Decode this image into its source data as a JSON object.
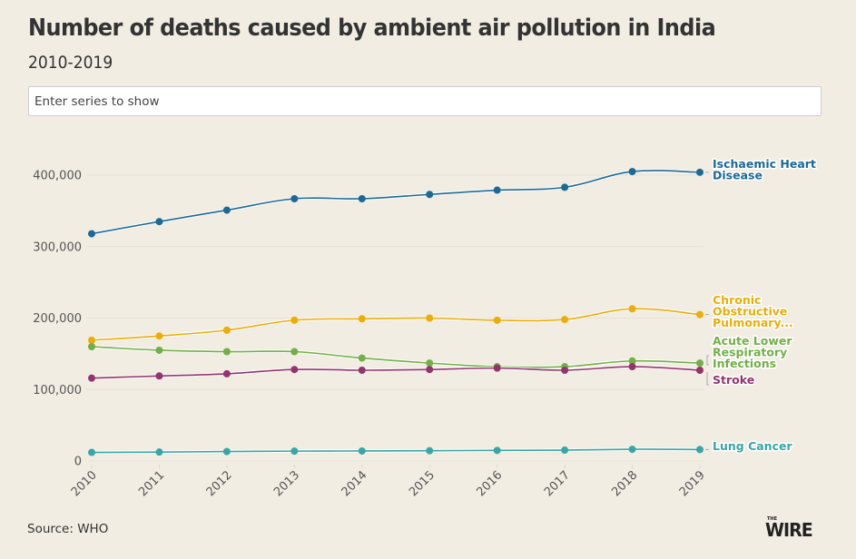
{
  "header": {
    "title": "Number of deaths caused by ambient air pollution in India",
    "subtitle": "2010-2019"
  },
  "search": {
    "placeholder": "Enter series to show",
    "value": ""
  },
  "footer": {
    "source": "Source: WHO",
    "logo_small": "THE",
    "logo_main": "WIRE"
  },
  "chart_data": {
    "type": "line",
    "title": "Number of deaths caused by ambient air pollution in India",
    "subtitle": "2010-2019",
    "xlabel": "",
    "ylabel": "",
    "x": [
      "2010",
      "2011",
      "2012",
      "2013",
      "2014",
      "2015",
      "2016",
      "2017",
      "2018",
      "2019"
    ],
    "ylim": [
      0,
      400000
    ],
    "yticks": [
      0,
      100000,
      200000,
      300000,
      400000
    ],
    "ytick_labels": [
      "0",
      "100,000",
      "200,000",
      "300,000",
      "400,000"
    ],
    "grid": true,
    "legend": "direct-labels-right",
    "series": [
      {
        "name": "Ischaemic Heart Disease",
        "label_lines": [
          "Ischaemic Heart",
          "Disease"
        ],
        "color": "#1d6996",
        "values": [
          318000,
          335000,
          351000,
          367000,
          367000,
          373000,
          379000,
          383000,
          405000,
          404000
        ]
      },
      {
        "name": "Chronic Obstructive Pulmonary...",
        "label_lines": [
          "Chronic",
          "Obstructive",
          "Pulmonary..."
        ],
        "color": "#edad08",
        "values": [
          169000,
          175000,
          183000,
          197000,
          199000,
          200000,
          197000,
          198000,
          213000,
          205000
        ]
      },
      {
        "name": "Acute Lower Respiratory Infections",
        "label_lines": [
          "Acute Lower",
          "Respiratory",
          "Infections"
        ],
        "color": "#73af48",
        "values": [
          160000,
          155000,
          153000,
          153000,
          144000,
          137000,
          132000,
          132000,
          140000,
          137000
        ]
      },
      {
        "name": "Stroke",
        "label_lines": [
          "Stroke"
        ],
        "color": "#94346e",
        "values": [
          116000,
          119000,
          122000,
          128000,
          127000,
          128000,
          130000,
          127000,
          132000,
          127000
        ]
      },
      {
        "name": "Lung Cancer",
        "label_lines": [
          "Lung Cancer"
        ],
        "color": "#38a6a5",
        "values": [
          12000,
          12500,
          13200,
          13800,
          14000,
          14400,
          14800,
          15200,
          16400,
          16000
        ]
      }
    ]
  }
}
